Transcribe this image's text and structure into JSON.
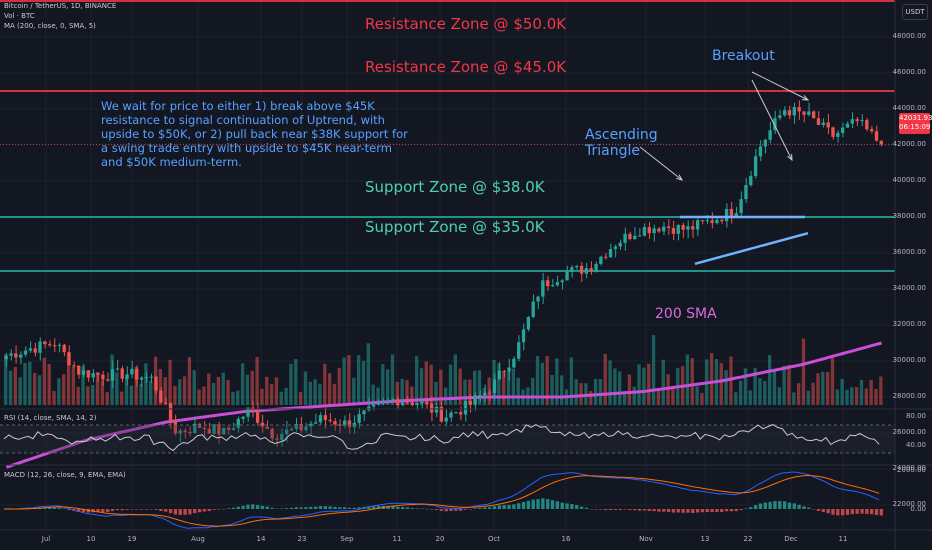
{
  "header": {
    "title": "Bitcoin / TetherUS, 1D, BINANCE",
    "volume_label": "Vol · BTC",
    "ma_label": "MA (200, close, 0, SMA, 5)",
    "rsi_label": "RSI (14, close, SMA, 14, 2)",
    "macd_label": "MACD (12, 26, close, 9, EMA, EMA)",
    "currency": "USDT"
  },
  "price_badge": {
    "price": "42031.93",
    "countdown": "06:15:09",
    "color": "#f23645"
  },
  "colors": {
    "up": "#26a69a",
    "down": "#ef5350",
    "resistance": "#f23645",
    "support": "#26a69a",
    "sma": "#c94fd6",
    "annotation": "#5aa0ff",
    "background": "#131722"
  },
  "annotations": {
    "note": "We wait for price to either 1) break above $45K resistance to signal continuation of Uptrend, with upside to $50K, or 2) pull back near $38K support for a swing trade entry with upside to $45K near-term and $50K medium-term.",
    "breakout": "Breakout",
    "triangle_line1": "Ascending",
    "triangle_line2": "Triangle",
    "sma_label": "200 SMA"
  },
  "zones": [
    {
      "label": "Resistance Zone @ $50.0K",
      "level": 50000,
      "kind": "resistance"
    },
    {
      "label": "Resistance Zone @ $45.0K",
      "level": 45000,
      "kind": "resistance"
    },
    {
      "label": "Support Zone @ $38.0K",
      "level": 38000,
      "kind": "support"
    },
    {
      "label": "Support Zone @ $35.0K",
      "level": 35000,
      "kind": "support"
    }
  ],
  "chart_data": {
    "type": "candlestick",
    "title": "Bitcoin / TetherUS, 1D, BINANCE",
    "price_ticks": [
      "48000.00",
      "46000.00",
      "44000.00",
      "42000.00",
      "40000.00",
      "38000.00",
      "36000.00",
      "34000.00",
      "32000.00",
      "30000.00",
      "28000.00",
      "26000.00",
      "24000.00",
      "22000.00"
    ],
    "price_ylim": [
      20800,
      51000
    ],
    "rsi_ticks": [
      "80.00",
      "40.00"
    ],
    "macd_ticks": [
      "2000.00",
      "0.00"
    ],
    "x_ticks": [
      "Jul",
      "10",
      "19",
      "Aug",
      "14",
      "23",
      "Sep",
      "11",
      "20",
      "Oct",
      "16",
      "Nov",
      "13",
      "22",
      "Dec",
      "11"
    ],
    "sma_200": [
      24100,
      25600,
      26600,
      27200,
      27500,
      27800,
      28000,
      28000,
      28300,
      28900,
      29800,
      31000
    ],
    "price_path": [
      30300,
      30700,
      31000,
      29400,
      29200,
      29300,
      29000,
      26050,
      26400,
      26000,
      27300,
      25900,
      26200,
      26800,
      26500,
      27200,
      27900,
      27700,
      26900,
      27500,
      28600,
      30600,
      34200,
      34900,
      35200,
      36500,
      37300,
      37500,
      37300,
      37800,
      38400,
      41900,
      44000,
      43600,
      42500,
      43300,
      42031.93
    ],
    "last_price": 42031.93
  }
}
